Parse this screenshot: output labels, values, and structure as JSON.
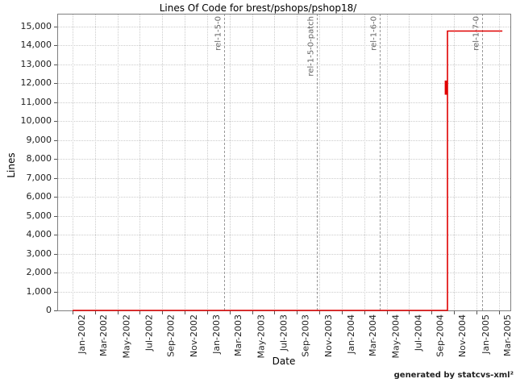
{
  "footer": {
    "credit": "generated by statcvs-xml²"
  },
  "chart_data": {
    "type": "line",
    "title": "Lines Of Code for brest/pshops/pshop18/",
    "xlabel": "Date",
    "ylabel": "Lines",
    "ylim": [
      0,
      15000
    ],
    "y_tick_step": 1000,
    "y_tick_labels": [
      "0",
      "1,000",
      "2,000",
      "3,000",
      "4,000",
      "5,000",
      "6,000",
      "7,000",
      "8,000",
      "9,000",
      "10,000",
      "11,000",
      "12,000",
      "13,000",
      "14,000",
      "15,000"
    ],
    "x_tick_interval_months": 2,
    "x_tick_labels": [
      "Jan-2002",
      "Mar-2002",
      "May-2002",
      "Jul-2002",
      "Sep-2002",
      "Nov-2002",
      "Jan-2003",
      "Mar-2003",
      "May-2003",
      "Jul-2003",
      "Sep-2003",
      "Nov-2003",
      "Jan-2004",
      "Mar-2004",
      "May-2004",
      "Jul-2004",
      "Sep-2004",
      "Nov-2004",
      "Jan-2005",
      "Mar-2005"
    ],
    "grid": true,
    "legend_position": "none",
    "series": [
      {
        "name": "lines-of-code",
        "color": "#e00000",
        "step": true,
        "points_month_value": [
          [
            0,
            0
          ],
          [
            33.42,
            0
          ],
          [
            33.42,
            14766
          ],
          [
            38.31,
            14766
          ]
        ],
        "spike_marker": {
          "month": 33.28,
          "value_low": 11400,
          "value_high": 12150
        }
      }
    ],
    "release_lines": [
      {
        "label": "rel-1-5-0",
        "month": 13.5,
        "approx_date": "Feb-2003"
      },
      {
        "label": "rel-1-5-0-patch",
        "month": 21.75,
        "approx_date": "Oct-2003"
      },
      {
        "label": "rel-1-6-0",
        "month": 27.35,
        "approx_date": "Apr-2004"
      },
      {
        "label": "rel-1-7-0",
        "month": 36.5,
        "approx_date": "Jan-2005"
      }
    ]
  }
}
